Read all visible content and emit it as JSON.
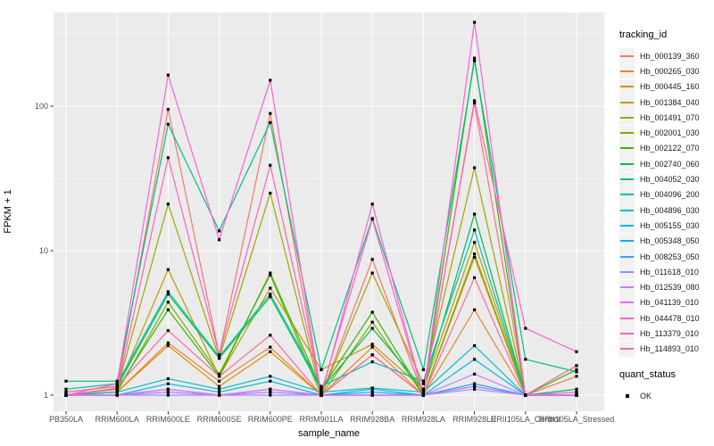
{
  "figure": {
    "xlabel": "sample_name",
    "ylabel": "FPKM + 1",
    "legend_series_title": "tracking_id",
    "legend_status_title": "quant_status",
    "legend_status_ok": "OK"
  },
  "chart_data": {
    "type": "line",
    "title": "",
    "xlabel": "sample_name",
    "ylabel": "FPKM + 1",
    "y_scale": "log10",
    "ylim": [
      1,
      400
    ],
    "y_major_ticks": [
      1,
      10,
      100
    ],
    "y_minor_ticks": [
      3.162,
      31.62,
      316.2
    ],
    "grid": true,
    "panel_bg": "#EBEBEB",
    "grid_color": "#FFFFFF",
    "tick_label_color": "#4D4D4D",
    "point_color": "#000000",
    "point_shape": "square",
    "quant_status": "OK",
    "legend_position": "right",
    "categories": [
      "PB350LA",
      "RRIM600LA",
      "RRIM600LE",
      "RRIM600SE",
      "RRIM600PE",
      "RRIM901LA",
      "RRIM928BA",
      "RRIM928LA",
      "RRIM928LE",
      "RRII105LA_Control",
      "RRII105LA_Stressed"
    ],
    "series": [
      {
        "name": "Hb_000139_360",
        "color": "#F8766D",
        "values": [
          1.0,
          1.12,
          95,
          1.9,
          89,
          1.0,
          8.7,
          1.0,
          105,
          1.0,
          1.35
        ]
      },
      {
        "name": "Hb_000265_030",
        "color": "#EA8331",
        "values": [
          1.0,
          1.05,
          2.3,
          1.25,
          2.15,
          1.0,
          2.15,
          1.0,
          3.9,
          1.0,
          1.05
        ]
      },
      {
        "name": "Hb_000445_160",
        "color": "#D89000",
        "values": [
          1.0,
          1.05,
          2.2,
          1.15,
          2.0,
          1.0,
          1.9,
          1.0,
          9.0,
          1.0,
          1.0
        ]
      },
      {
        "name": "Hb_001384_040",
        "color": "#C09B00",
        "values": [
          1.0,
          1.1,
          7.4,
          1.35,
          5.5,
          1.5,
          2.25,
          1.1,
          11.4,
          1.0,
          1.0
        ]
      },
      {
        "name": "Hb_001491_070",
        "color": "#A3A500",
        "values": [
          1.0,
          1.1,
          21.0,
          1.8,
          25.0,
          1.0,
          7.0,
          1.2,
          37.5,
          1.0,
          1.0
        ]
      },
      {
        "name": "Hb_002001_030",
        "color": "#7CAE00",
        "values": [
          1.0,
          1.05,
          4.4,
          1.4,
          6.8,
          1.0,
          3.2,
          1.0,
          9.5,
          1.0,
          1.0
        ]
      },
      {
        "name": "Hb_002122_070",
        "color": "#39B600",
        "values": [
          1.0,
          1.1,
          3.9,
          1.35,
          7.0,
          1.1,
          3.75,
          1.0,
          215.0,
          1.0,
          1.5
        ]
      },
      {
        "name": "Hb_002740_060",
        "color": "#00BB4E",
        "values": [
          1.05,
          1.15,
          5.0,
          1.8,
          4.8,
          1.1,
          2.9,
          1.1,
          17.9,
          1.0,
          1.1
        ]
      },
      {
        "name": "Hb_004052_030",
        "color": "#00BF7D",
        "values": [
          1.25,
          1.25,
          75.0,
          13.7,
          77.0,
          1.5,
          16.7,
          1.5,
          206.0,
          1.77,
          1.45
        ]
      },
      {
        "name": "Hb_004096_200",
        "color": "#00C1A3",
        "values": [
          1.1,
          1.2,
          5.2,
          1.85,
          5.0,
          1.15,
          1.7,
          1.25,
          13.9,
          1.0,
          1.6
        ]
      },
      {
        "name": "Hb_004896_030",
        "color": "#00BFC4",
        "values": [
          1.0,
          1.05,
          1.3,
          1.1,
          1.35,
          1.05,
          1.12,
          1.05,
          2.2,
          1.0,
          1.0
        ]
      },
      {
        "name": "Hb_005155_030",
        "color": "#00BAE0",
        "values": [
          1.0,
          1.0,
          1.2,
          1.05,
          1.25,
          1.0,
          1.1,
          1.0,
          1.77,
          1.0,
          1.0
        ]
      },
      {
        "name": "Hb_005348_050",
        "color": "#00B0F6",
        "values": [
          1.0,
          1.0,
          1.1,
          1.0,
          1.1,
          1.0,
          1.05,
          1.0,
          1.2,
          1.0,
          1.0
        ]
      },
      {
        "name": "Hb_008253_050",
        "color": "#35A2FF",
        "values": [
          1.0,
          1.0,
          1.05,
          1.0,
          1.05,
          1.0,
          1.0,
          1.0,
          1.15,
          1.0,
          1.0
        ]
      },
      {
        "name": "Hb_011618_010",
        "color": "#9590FF",
        "values": [
          1.0,
          1.0,
          1.0,
          1.0,
          1.0,
          1.0,
          1.0,
          1.0,
          1.1,
          1.0,
          1.0
        ]
      },
      {
        "name": "Hb_012539_080",
        "color": "#C77CFF",
        "values": [
          1.0,
          1.0,
          1.05,
          1.0,
          1.05,
          1.0,
          1.0,
          1.0,
          1.4,
          1.0,
          1.0
        ]
      },
      {
        "name": "Hb_041139_010",
        "color": "#E76BF3",
        "values": [
          1.0,
          1.0,
          1.1,
          1.0,
          1.1,
          1.0,
          1.0,
          1.0,
          1.15,
          1.0,
          1.0
        ]
      },
      {
        "name": "Hb_044478_010",
        "color": "#FA62DB",
        "values": [
          1.0,
          1.2,
          164.0,
          11.9,
          151.0,
          1.0,
          21.0,
          1.0,
          380.0,
          1.0,
          1.05
        ]
      },
      {
        "name": "Hb_113379_010",
        "color": "#FF62BC",
        "values": [
          1.0,
          1.1,
          44.0,
          1.9,
          39.0,
          1.05,
          16.5,
          1.0,
          109.0,
          2.9,
          2.0
        ]
      },
      {
        "name": "Hb_114893_010",
        "color": "#FF6A98",
        "values": [
          1.05,
          1.15,
          2.8,
          1.35,
          2.6,
          1.0,
          1.9,
          1.0,
          6.5,
          1.0,
          1.6
        ]
      }
    ]
  }
}
